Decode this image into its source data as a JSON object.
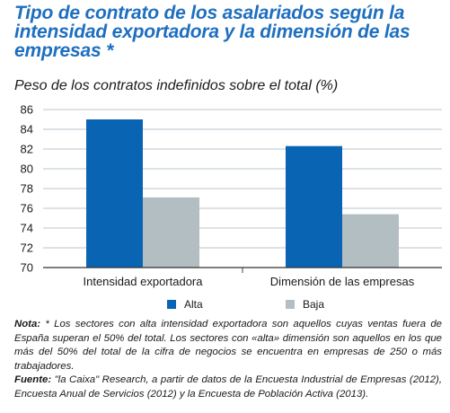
{
  "title": "Tipo de contrato de los asalariados según la intensidad  exportadora y la dimensión de las empresas *",
  "subtitle": "Peso de los contratos indefinidos sobre el total (%)",
  "colors": {
    "title": "#1e6fc0",
    "alta": "#0a64b4",
    "baja": "#b3bec3",
    "grid": "#b9c5cc"
  },
  "chart_data": {
    "type": "bar",
    "categories": [
      "Intensidad exportadora",
      "Dimensión de las empresas"
    ],
    "series": [
      {
        "name": "Alta",
        "values": [
          85.0,
          82.3
        ]
      },
      {
        "name": "Baja",
        "values": [
          77.1,
          75.4
        ]
      }
    ],
    "ylim": [
      70,
      86
    ],
    "yticks": [
      "70",
      "72",
      "74",
      "76",
      "78",
      "80",
      "82",
      "84",
      "86"
    ],
    "grid": true,
    "legend": "bottom"
  },
  "note": {
    "label": "Nota:",
    "text": " * Los sectores con alta intensidad exportadora son aquellos cuyas ventas fuera de España superan el 50% del total. Los sectores con «alta» dimensión son aquellos en los que más del 50% del total de la cifra de negocios se encuentra en empresas de 250 o más trabajadores."
  },
  "source": {
    "label": "Fuente:",
    "text": " \"la Caixa\" Research, a partir de datos de la Encuesta Industrial de Empresas (2012), Encuesta Anual de Servicios (2012) y la Encuesta de Población Activa (2013)."
  }
}
